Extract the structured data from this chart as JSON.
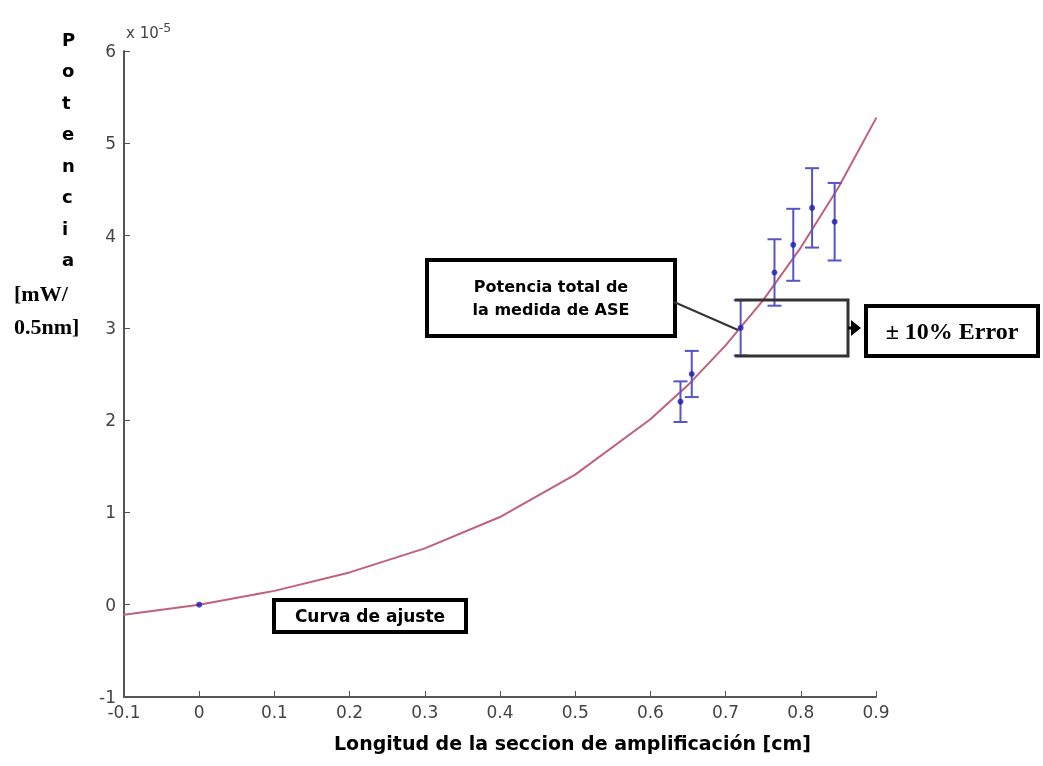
{
  "chart_data": {
    "type": "scatter",
    "xlabel": "Longitud de la seccion de amplificación [cm]",
    "ylabel": "Potencia [mW/ 0.5nm]",
    "annotations": [
      "x 10$^{-5}$",
      "Potencia total de la medida de ASE",
      "Curva de ajuste",
      "± 10% Error"
    ],
    "xlim": [
      -0.1,
      0.9
    ],
    "xticks": [
      -0.1,
      0,
      0.1,
      0.2,
      0.3,
      0.4,
      0.5,
      0.6,
      0.7,
      0.8,
      0.9
    ],
    "ylim": [
      -1,
      6
    ],
    "yticks": [
      -1,
      0,
      1,
      2,
      3,
      4,
      5,
      6
    ],
    "grid": false,
    "series": [
      {
        "type": "line",
        "color": "#c0607a",
        "marker": "none",
        "line_style": "solid",
        "x": [
          -0.1,
          0,
          0.1,
          0.2,
          0.3,
          0.4,
          0.5,
          0.6,
          0.65,
          0.7,
          0.75,
          0.8,
          0.85,
          0.9
        ],
        "values": [
          -0.11,
          0,
          0.15,
          0.35,
          0.61,
          0.95,
          1.41,
          2.01,
          2.38,
          2.81,
          3.3,
          3.87,
          4.52,
          5.27
        ]
      },
      {
        "color": "#1c1cb0",
        "marker": "circle",
        "x": [
          0,
          0.64,
          0.655,
          0.72,
          0.765,
          0.79,
          0.815,
          0.845
        ],
        "values": [
          0,
          2.2,
          2.5,
          3.0,
          3.6,
          3.9,
          4.3,
          4.15
        ],
        "errors": [
          null,
          0.22,
          0.25,
          0.3,
          0.36,
          0.39,
          0.43,
          0.42
        ]
      }
    ]
  }
}
